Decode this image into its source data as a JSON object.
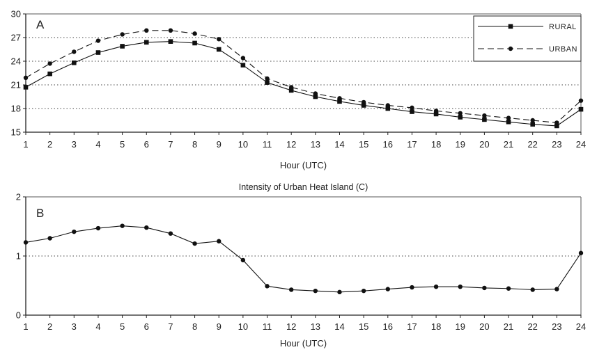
{
  "chart_data": [
    {
      "type": "line",
      "panel_label": "A",
      "title": "",
      "xlabel": "Hour (UTC)",
      "ylabel": "",
      "x": [
        1,
        2,
        3,
        4,
        5,
        6,
        7,
        8,
        9,
        10,
        11,
        12,
        13,
        14,
        15,
        16,
        17,
        18,
        19,
        20,
        21,
        22,
        23,
        24
      ],
      "xlim": [
        1,
        24
      ],
      "ylim": [
        15,
        30
      ],
      "yticks": [
        15,
        18,
        21,
        24,
        27,
        30
      ],
      "grid": "horizontal dotted",
      "legend_position": "top-right",
      "series": [
        {
          "name": "RURAL",
          "marker": "square",
          "line_style": "solid",
          "values": [
            20.7,
            22.4,
            23.8,
            25.1,
            25.9,
            26.4,
            26.5,
            26.3,
            25.5,
            23.5,
            21.3,
            20.3,
            19.5,
            18.9,
            18.4,
            18.0,
            17.6,
            17.3,
            16.9,
            16.6,
            16.3,
            16.0,
            15.8,
            17.9
          ]
        },
        {
          "name": "URBAN",
          "marker": "circle",
          "line_style": "dashed",
          "values": [
            21.9,
            23.7,
            25.2,
            26.6,
            27.4,
            27.9,
            27.9,
            27.5,
            26.8,
            24.4,
            21.8,
            20.7,
            19.9,
            19.3,
            18.8,
            18.4,
            18.1,
            17.7,
            17.4,
            17.1,
            16.8,
            16.5,
            16.2,
            19.0
          ]
        }
      ]
    },
    {
      "type": "line",
      "panel_label": "B",
      "title": "Intensity of Urban Heat Island (C)",
      "xlabel": "Hour (UTC)",
      "ylabel": "",
      "x": [
        1,
        2,
        3,
        4,
        5,
        6,
        7,
        8,
        9,
        10,
        11,
        12,
        13,
        14,
        15,
        16,
        17,
        18,
        19,
        20,
        21,
        22,
        23,
        24
      ],
      "xlim": [
        1,
        24
      ],
      "ylim": [
        0,
        2
      ],
      "yticks": [
        0,
        1,
        2
      ],
      "grid": "horizontal dotted",
      "series": [
        {
          "marker": "circle",
          "line_style": "solid",
          "values": [
            1.23,
            1.3,
            1.41,
            1.47,
            1.51,
            1.48,
            1.38,
            1.21,
            1.25,
            0.93,
            0.49,
            0.43,
            0.41,
            0.39,
            0.41,
            0.44,
            0.47,
            0.48,
            0.48,
            0.46,
            0.45,
            0.43,
            0.44,
            1.05
          ]
        }
      ]
    }
  ]
}
